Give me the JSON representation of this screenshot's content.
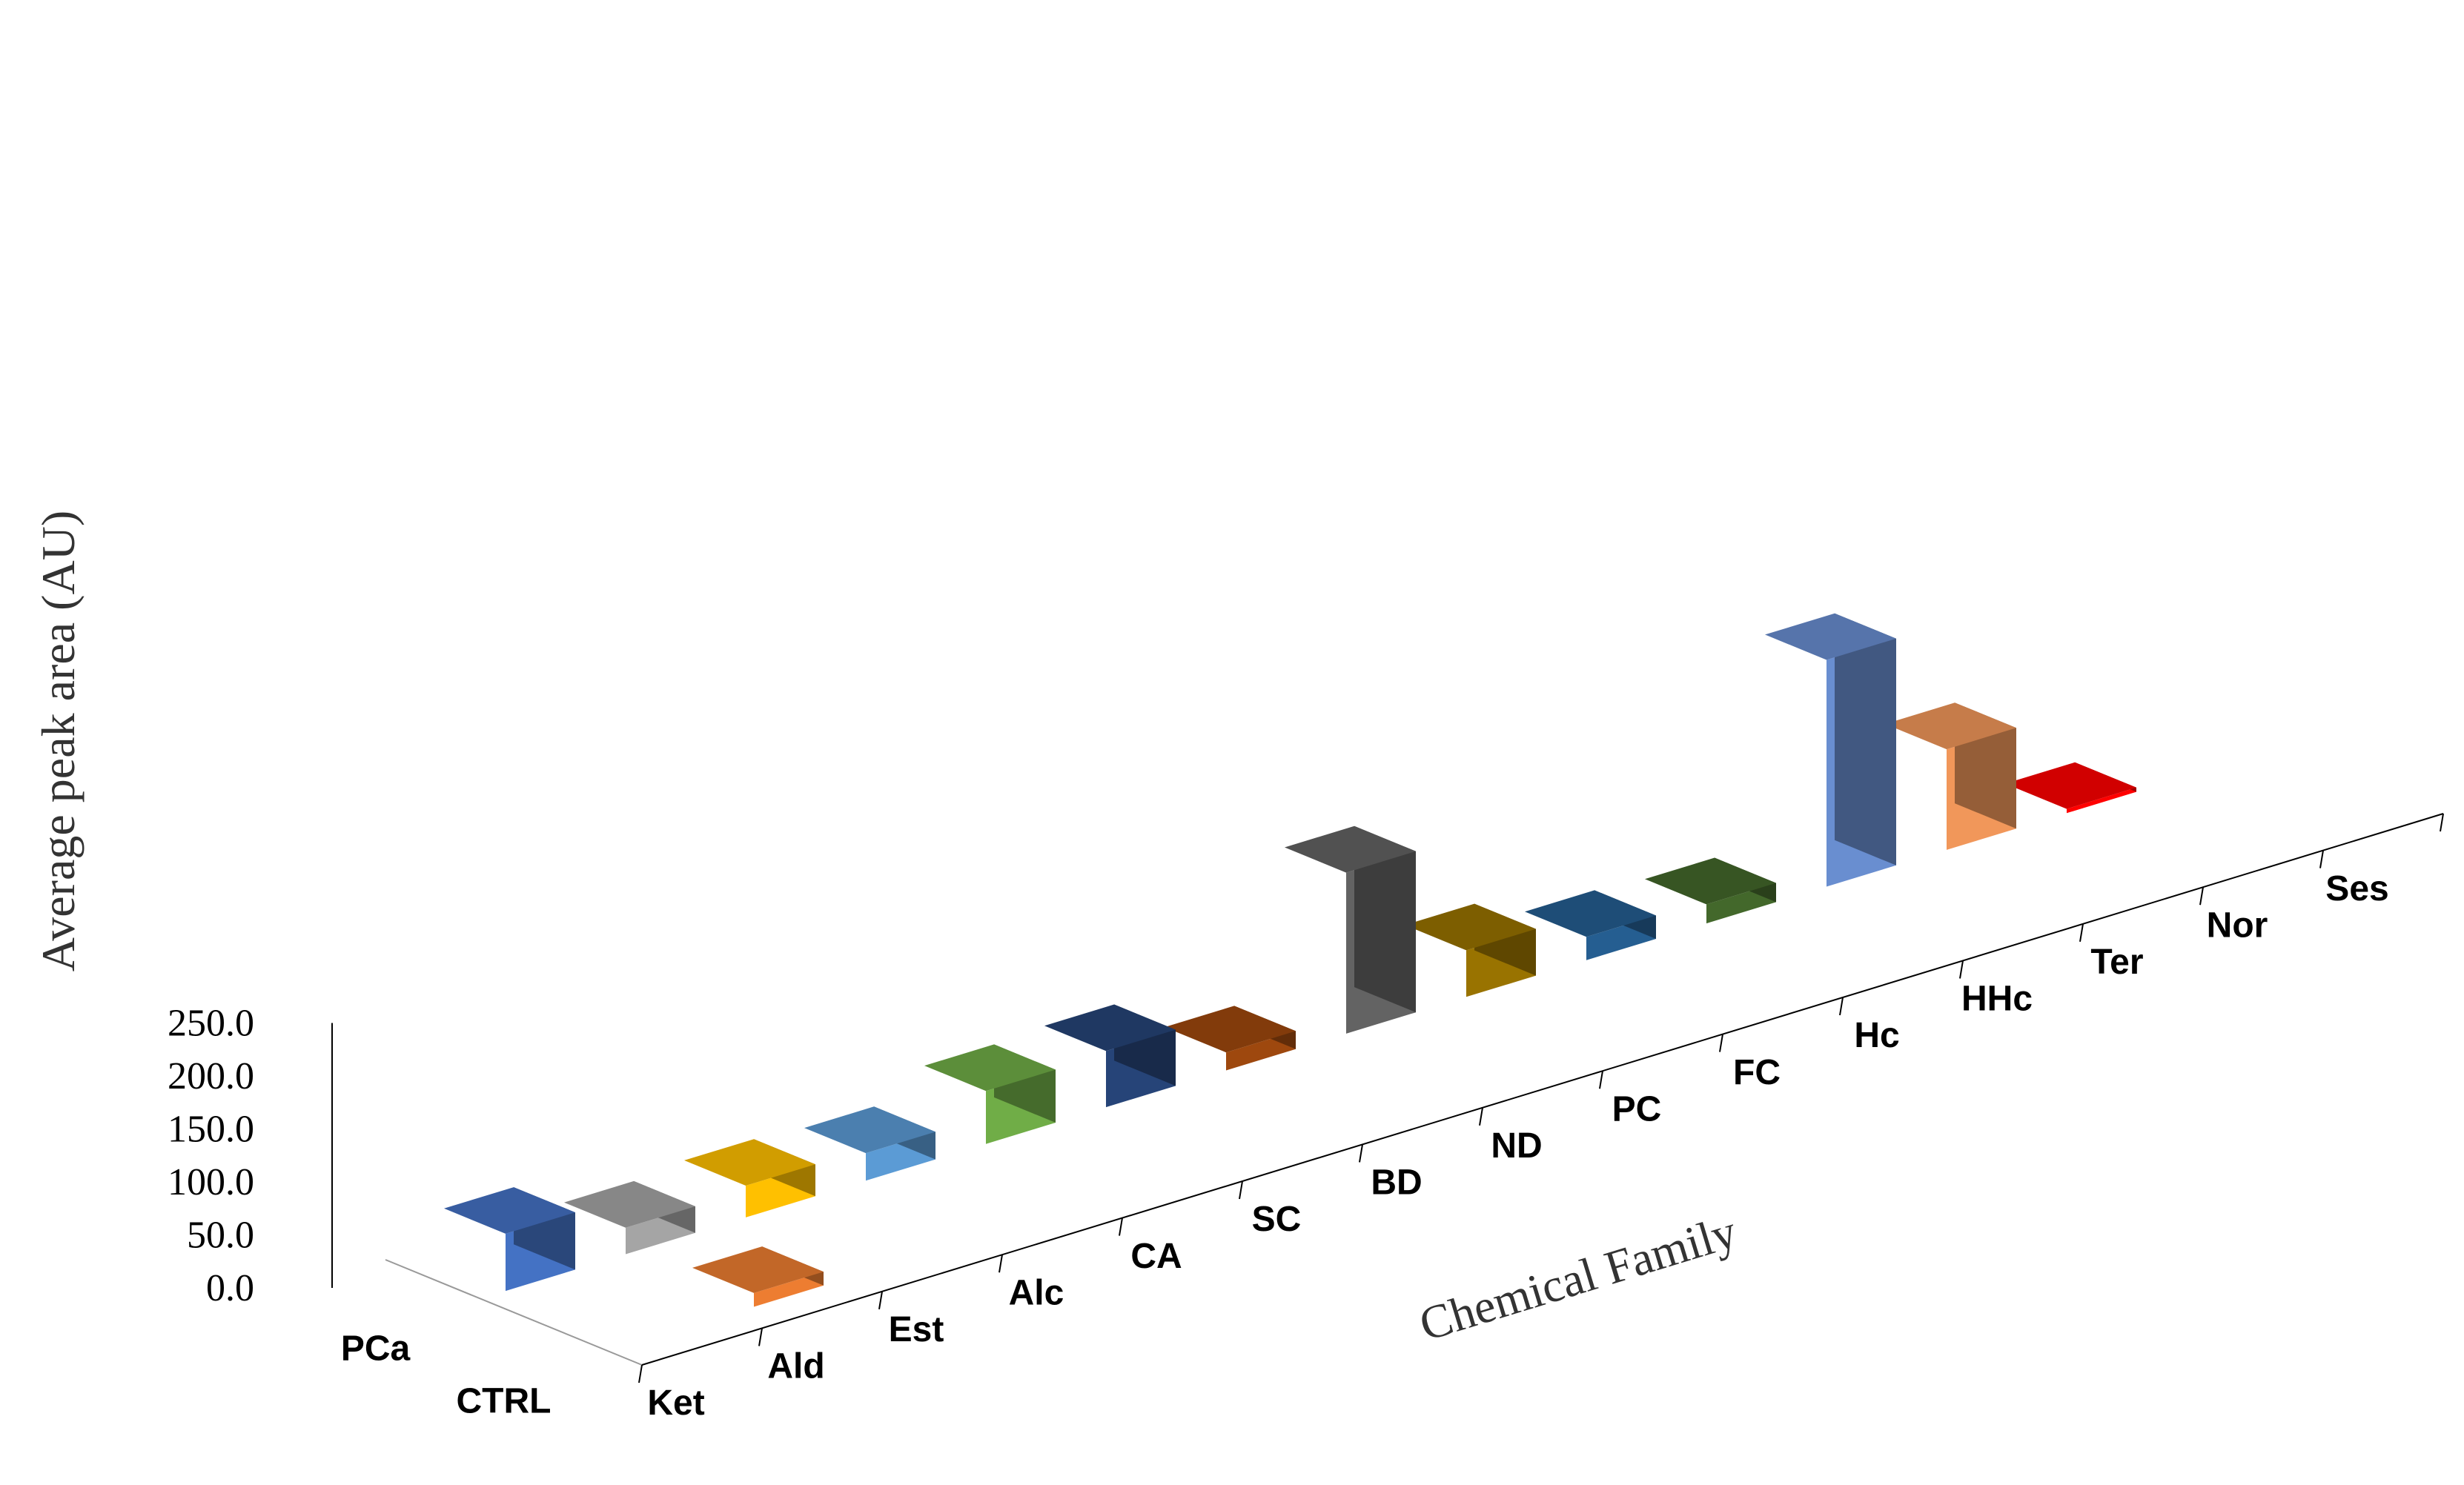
{
  "chart_data": {
    "type": "bar",
    "view": "3d-column",
    "ylabel": "Average peak area (AU)",
    "xlabel": "Chemical Family",
    "ylim": [
      0,
      250
    ],
    "y_ticks": [
      "0.0",
      "50.0",
      "100.0",
      "150.0",
      "200.0",
      "250.0"
    ],
    "categories": [
      "Ket",
      "Ald",
      "Est",
      "Alc",
      "CA",
      "SC",
      "BD",
      "ND",
      "PC",
      "FC",
      "Hc",
      "HHc",
      "Ter",
      "Nor",
      "Ses"
    ],
    "series": [
      {
        "name": "PCa",
        "values": [
          54,
          25,
          30,
          26,
          50,
          53,
          17,
          152,
          44,
          22,
          18,
          214,
          95,
          4,
          null
        ],
        "colors": [
          "#4472C4",
          "#A5A5A5",
          "#FFC000",
          "#5B9BD5",
          "#70AD47",
          "#264478",
          "#9E480E",
          "#636363",
          "#997300",
          "#255E91",
          "#43682B",
          "#698ED0",
          "#F1975A",
          "#FF0000",
          null
        ]
      },
      {
        "name": "CTRL",
        "values": [
          null,
          13,
          null,
          null,
          null,
          null,
          null,
          null,
          null,
          null,
          null,
          null,
          null,
          null,
          null
        ],
        "colors": [
          null,
          "#ED7D31",
          null,
          null,
          null,
          null,
          null,
          null,
          null,
          null,
          null,
          null,
          null,
          null,
          null
        ]
      }
    ]
  }
}
